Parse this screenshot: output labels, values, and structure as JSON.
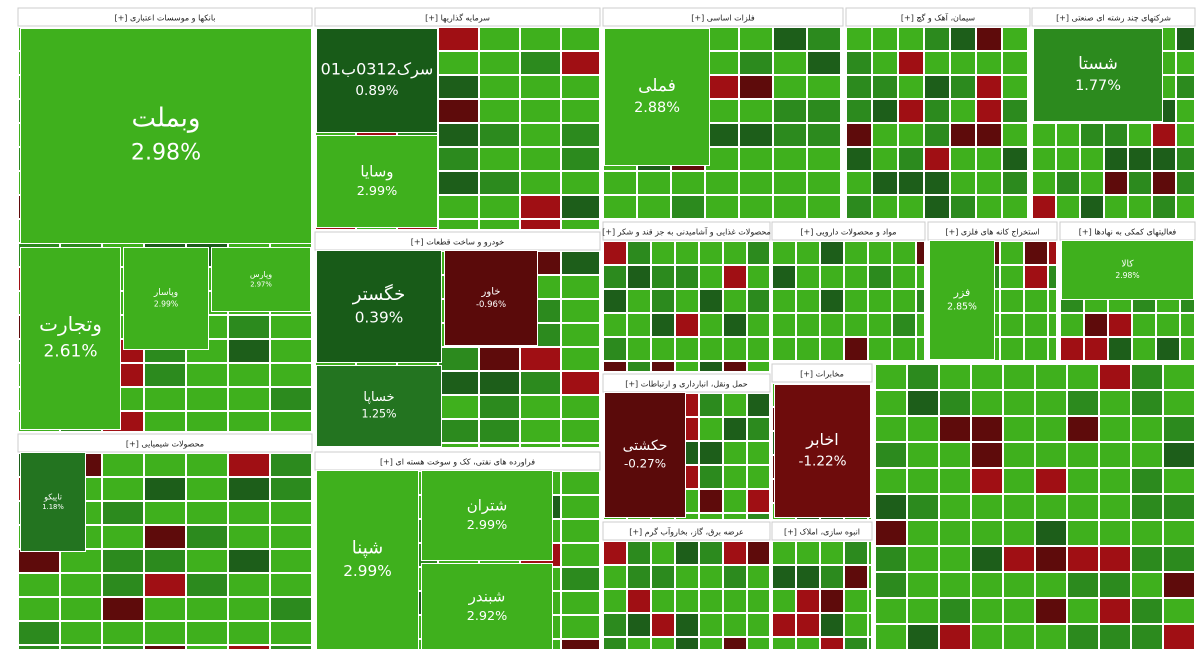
{
  "chart_data": {
    "type": "treemap",
    "sectors": [
      {
        "name": "بانکها و موسسات اعتباری [+]",
        "labels": [
          "وبملت",
          "وتجارت",
          "وپاسار",
          "وپارس"
        ],
        "values": [
          2.98,
          2.61,
          2.99,
          2.97
        ],
        "value_labels": [
          "2.98%",
          "2.61%",
          "2.99%",
          "2.97%"
        ]
      },
      {
        "name": "سرمایه گذاریها [+]",
        "labels": [
          "سرک0312ب01",
          "وسایا"
        ],
        "values": [
          0.89,
          2.99
        ],
        "value_labels": [
          "0.89%",
          "2.99%"
        ]
      },
      {
        "name": "خودرو و ساخت قطعات [+]",
        "labels": [
          "خگستر",
          "خساپا",
          "خاور"
        ],
        "values": [
          0.39,
          1.25,
          -0.96
        ],
        "value_labels": [
          "0.39%",
          "1.25%",
          "-0.96%"
        ]
      },
      {
        "name": "فراورده های نفتی، کک و سوخت هسته ای [+]",
        "labels": [
          "شپنا",
          "شتران",
          "شبندر"
        ],
        "values": [
          2.99,
          2.99,
          2.92
        ],
        "value_labels": [
          "2.99%",
          "2.99%",
          "2.92%"
        ]
      },
      {
        "name": "محصولات شیمیایی [+]",
        "labels": [
          "تاپیکو"
        ],
        "values": [
          1.18
        ],
        "value_labels": [
          "1.18%"
        ]
      },
      {
        "name": "فلزات اساسی [+]",
        "labels": [
          "فملی"
        ],
        "values": [
          2.88
        ],
        "value_labels": [
          "2.88%"
        ]
      },
      {
        "name": "سیمان، آهک و گچ [+]",
        "labels": [],
        "values": [],
        "value_labels": []
      },
      {
        "name": "شرکتهای چند رشته ای صنعتی [+]",
        "labels": [
          "شستا"
        ],
        "values": [
          1.77
        ],
        "value_labels": [
          "1.77%"
        ]
      },
      {
        "name": "محصولات غذایی و آشامیدنی به جز قند و شکر [+]",
        "labels": [],
        "values": [],
        "value_labels": []
      },
      {
        "name": "مواد و محصولات دارویی [+]",
        "labels": [],
        "values": [],
        "value_labels": []
      },
      {
        "name": "استخراج کانه های فلزی [+]",
        "labels": [
          "فزر"
        ],
        "values": [
          2.85
        ],
        "value_labels": [
          "2.85%"
        ]
      },
      {
        "name": "فعالیتهای کمکی به نهادها [+]",
        "labels": [
          "کالا"
        ],
        "values": [
          2.98
        ],
        "value_labels": [
          "2.98%"
        ]
      },
      {
        "name": "حمل ونقل، انبارداری و ارتباطات [+]",
        "labels": [
          "حکشتی"
        ],
        "values": [
          -0.27
        ],
        "value_labels": [
          "-0.27%"
        ]
      },
      {
        "name": "مخابرات [+]",
        "labels": [
          "اخابر"
        ],
        "values": [
          -1.22
        ],
        "value_labels": [
          "-1.22%"
        ]
      },
      {
        "name": "عرضه برق، گاز، بخاروآب گرم [+]",
        "labels": [],
        "values": [],
        "value_labels": []
      },
      {
        "name": "انبوه سازی، املاک [+]",
        "labels": [],
        "values": [],
        "value_labels": []
      }
    ]
  }
}
